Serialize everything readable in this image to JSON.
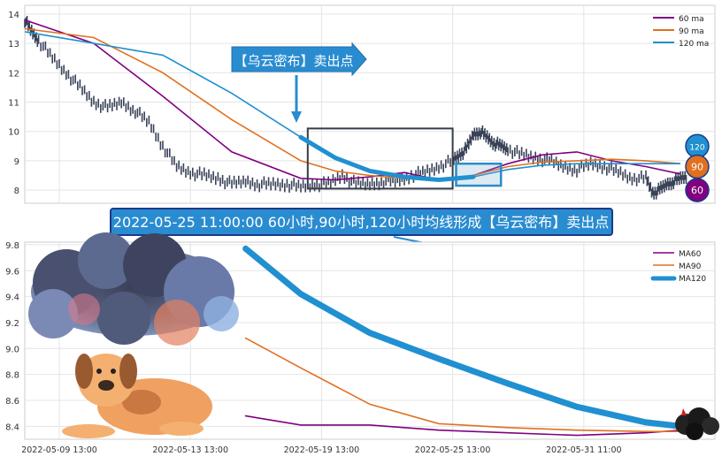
{
  "chart_data": [
    {
      "type": "line",
      "title": "",
      "subtitle": "",
      "ylim": [
        7.55,
        14.3
      ],
      "yticks": [
        8,
        9,
        10,
        11,
        12,
        13,
        14
      ],
      "xlim": [
        0,
        100
      ],
      "grid": true,
      "legend_position": "top-right",
      "price_series": {
        "x": [
          0,
          1,
          2,
          4,
          6,
          8,
          10,
          12,
          14,
          16,
          18,
          20,
          22,
          24,
          26,
          28,
          30,
          32,
          34,
          36,
          38,
          40,
          42,
          44,
          46,
          48,
          50,
          52,
          54,
          56,
          58,
          60,
          62,
          63,
          64,
          65,
          66,
          67,
          68,
          69,
          70,
          72,
          74,
          76,
          78,
          80,
          82,
          84,
          86,
          88,
          90,
          91,
          92,
          93,
          94,
          95,
          96
        ],
        "y": [
          13.8,
          13.4,
          13.1,
          12.5,
          12.0,
          11.5,
          11.0,
          10.8,
          11.0,
          10.7,
          10.3,
          9.5,
          8.8,
          8.6,
          8.5,
          8.4,
          8.2,
          8.3,
          8.2,
          8.2,
          8.2,
          8.1,
          8.2,
          8.2,
          8.5,
          8.2,
          8.2,
          8.3,
          8.3,
          8.5,
          8.6,
          8.8,
          9.0,
          9.2,
          9.4,
          9.9,
          10.0,
          9.8,
          9.6,
          9.5,
          9.4,
          9.2,
          9.1,
          9.0,
          8.8,
          8.7,
          8.9,
          8.8,
          8.6,
          8.4,
          8.4,
          7.9,
          8.0,
          8.2,
          8.3,
          8.4,
          8.5
        ]
      },
      "series": [
        {
          "name": "60 ma",
          "color": "#800080",
          "x": [
            0,
            10,
            20,
            30,
            40,
            45,
            50,
            55,
            60,
            65,
            70,
            75,
            80,
            85,
            90,
            95
          ],
          "y": [
            13.8,
            13.0,
            11.2,
            9.3,
            8.4,
            8.35,
            8.45,
            8.6,
            8.35,
            8.5,
            8.9,
            9.2,
            9.3,
            9.0,
            8.8,
            8.55
          ]
        },
        {
          "name": "90 ma",
          "color": "#e07020",
          "x": [
            0,
            10,
            20,
            30,
            40,
            45,
            50,
            55,
            60,
            65,
            70,
            75,
            80,
            85,
            90,
            95
          ],
          "y": [
            13.5,
            13.2,
            12.0,
            10.4,
            9.0,
            8.65,
            8.5,
            8.4,
            8.35,
            8.5,
            8.8,
            8.95,
            9.0,
            9.05,
            9.0,
            8.9
          ]
        },
        {
          "name": "120 ma",
          "color": "#2090d0",
          "x": [
            0,
            10,
            20,
            30,
            40,
            45,
            50,
            55,
            60,
            65,
            70,
            75,
            80,
            85,
            90,
            95
          ],
          "y": [
            13.4,
            13.0,
            12.6,
            11.3,
            9.8,
            9.1,
            8.65,
            8.45,
            8.35,
            8.45,
            8.7,
            8.85,
            8.9,
            8.9,
            8.9,
            8.9
          ]
        }
      ],
      "badges": [
        {
          "label": "120",
          "color": "#2090d0",
          "y": 9.5
        },
        {
          "label": "90",
          "color": "#e07020",
          "y": 8.8
        },
        {
          "label": "60",
          "color": "#800080",
          "y": 8.0
        }
      ],
      "callout": {
        "text": "【乌云密布】卖出点"
      },
      "highlight_box": {
        "x": [
          41,
          62
        ],
        "y": [
          8.05,
          10.1
        ]
      },
      "small_box": {
        "x": [
          62.5,
          69
        ],
        "y": [
          8.15,
          8.9
        ]
      }
    },
    {
      "type": "line",
      "title": "",
      "subtitle": "",
      "ylim": [
        8.3,
        9.82
      ],
      "yticks": [
        8.4,
        8.6,
        8.8,
        9.0,
        9.2,
        9.4,
        9.6,
        9.8
      ],
      "xlim": [
        0,
        100
      ],
      "grid": true,
      "legend_position": "top-right",
      "xticks": [
        {
          "x": 5,
          "label": "2022-05-09 13:00"
        },
        {
          "x": 24,
          "label": "2022-05-13 13:00"
        },
        {
          "x": 43,
          "label": "2022-05-19 13:00"
        },
        {
          "x": 62,
          "label": "2022-05-25 13:00"
        },
        {
          "x": 81,
          "label": "2022-05-31 11:00"
        }
      ],
      "series": [
        {
          "name": "MA60",
          "color": "#800080",
          "x": [
            32,
            40,
            50,
            60,
            70,
            80,
            90,
            95,
            99
          ],
          "y": [
            8.48,
            8.41,
            8.41,
            8.37,
            8.35,
            8.33,
            8.35,
            8.37,
            8.38
          ]
        },
        {
          "name": "MA90",
          "color": "#e07020",
          "x": [
            32,
            40,
            50,
            60,
            70,
            80,
            90,
            95,
            99
          ],
          "y": [
            9.08,
            8.85,
            8.57,
            8.42,
            8.39,
            8.37,
            8.36,
            8.36,
            8.37
          ]
        },
        {
          "name": "MA120",
          "color": "#2090d0",
          "x": [
            32,
            40,
            50,
            60,
            70,
            80,
            90,
            95,
            99
          ],
          "y": [
            9.77,
            9.42,
            9.12,
            8.92,
            8.73,
            8.55,
            8.43,
            8.4,
            8.4
          ]
        }
      ]
    }
  ],
  "banner": {
    "text": "2022-05-25 11:00:00 60小时,90小时,120小时均线形成【乌云密布】卖出点"
  }
}
